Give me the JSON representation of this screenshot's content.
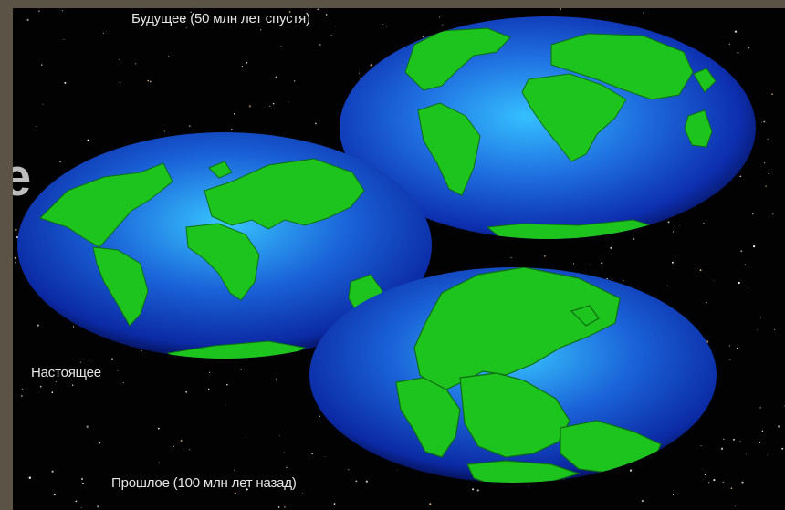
{
  "captions": {
    "future": "Будущее (50 млн лет спустя)",
    "present": "Настоящее",
    "past": "Прошлое (100 млн лет назад)"
  },
  "colors": {
    "frame": "#5b5346",
    "space": "#020202",
    "ocean_light": "#2aa8f0",
    "ocean_dark": "#0a1f8a",
    "land": "#1ec41e",
    "caption": "#e6e6e6"
  }
}
